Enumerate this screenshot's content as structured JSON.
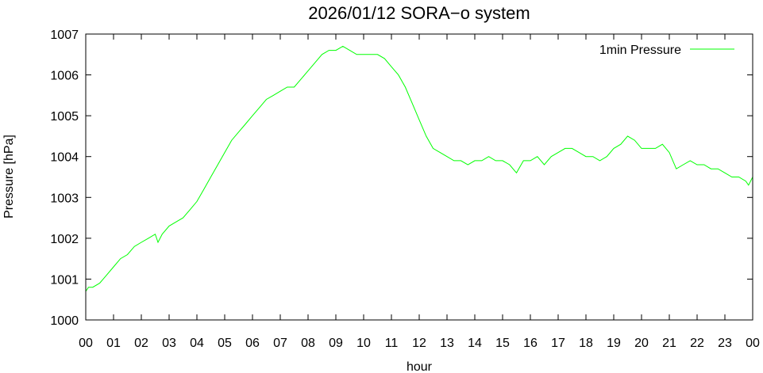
{
  "chart_data": {
    "type": "line",
    "title": "2026/01/12 SORA−o system",
    "xlabel": "hour",
    "ylabel": "Pressure [hPa]",
    "xlim": [
      0,
      24
    ],
    "ylim": [
      1000,
      1007
    ],
    "x_ticks": [
      0,
      1,
      2,
      3,
      4,
      5,
      6,
      7,
      8,
      9,
      10,
      11,
      12,
      13,
      14,
      15,
      16,
      17,
      18,
      19,
      20,
      21,
      22,
      23,
      24
    ],
    "x_tick_labels": [
      "00",
      "01",
      "02",
      "03",
      "04",
      "05",
      "06",
      "07",
      "08",
      "09",
      "10",
      "11",
      "12",
      "13",
      "14",
      "15",
      "16",
      "17",
      "18",
      "19",
      "20",
      "21",
      "22",
      "23",
      "00"
    ],
    "y_ticks": [
      1000,
      1001,
      1002,
      1003,
      1004,
      1005,
      1006,
      1007
    ],
    "y_tick_labels": [
      "1000",
      "1001",
      "1002",
      "1003",
      "1004",
      "1005",
      "1006",
      "1007"
    ],
    "legend_position": "top-right",
    "grid": false,
    "series": [
      {
        "name": "1min Pressure",
        "color": "#00ff00",
        "x": [
          0.0,
          0.1,
          0.25,
          0.5,
          0.75,
          1.0,
          1.25,
          1.5,
          1.75,
          2.0,
          2.25,
          2.5,
          2.6,
          2.75,
          3.0,
          3.25,
          3.5,
          3.75,
          4.0,
          4.25,
          4.5,
          4.75,
          5.0,
          5.25,
          5.5,
          5.75,
          6.0,
          6.25,
          6.5,
          6.75,
          7.0,
          7.25,
          7.5,
          7.75,
          8.0,
          8.25,
          8.5,
          8.75,
          9.0,
          9.25,
          9.5,
          9.75,
          10.0,
          10.25,
          10.5,
          10.75,
          11.0,
          11.25,
          11.5,
          11.75,
          12.0,
          12.25,
          12.5,
          12.75,
          13.0,
          13.25,
          13.5,
          13.75,
          14.0,
          14.25,
          14.5,
          14.75,
          15.0,
          15.25,
          15.5,
          15.75,
          16.0,
          16.25,
          16.5,
          16.75,
          17.0,
          17.25,
          17.5,
          17.75,
          18.0,
          18.25,
          18.5,
          18.75,
          19.0,
          19.25,
          19.5,
          19.75,
          20.0,
          20.25,
          20.5,
          20.75,
          21.0,
          21.25,
          21.5,
          21.75,
          22.0,
          22.25,
          22.5,
          22.75,
          23.0,
          23.25,
          23.5,
          23.75,
          23.85,
          24.0
        ],
        "y": [
          1000.7,
          1000.8,
          1000.8,
          1000.9,
          1001.1,
          1001.3,
          1001.5,
          1001.6,
          1001.8,
          1001.9,
          1002.0,
          1002.1,
          1001.9,
          1002.1,
          1002.3,
          1002.4,
          1002.5,
          1002.7,
          1002.9,
          1003.2,
          1003.5,
          1003.8,
          1004.1,
          1004.4,
          1004.6,
          1004.8,
          1005.0,
          1005.2,
          1005.4,
          1005.5,
          1005.6,
          1005.7,
          1005.7,
          1005.9,
          1006.1,
          1006.3,
          1006.5,
          1006.6,
          1006.6,
          1006.7,
          1006.6,
          1006.5,
          1006.5,
          1006.5,
          1006.5,
          1006.4,
          1006.2,
          1006.0,
          1005.7,
          1005.3,
          1004.9,
          1004.5,
          1004.2,
          1004.1,
          1004.0,
          1003.9,
          1003.9,
          1003.8,
          1003.9,
          1003.9,
          1004.0,
          1003.9,
          1003.9,
          1003.8,
          1003.6,
          1003.9,
          1003.9,
          1004.0,
          1003.8,
          1004.0,
          1004.1,
          1004.2,
          1004.2,
          1004.1,
          1004.0,
          1004.0,
          1003.9,
          1004.0,
          1004.2,
          1004.3,
          1004.5,
          1004.4,
          1004.2,
          1004.2,
          1004.2,
          1004.3,
          1004.1,
          1003.7,
          1003.8,
          1003.9,
          1003.8,
          1003.8,
          1003.7,
          1003.7,
          1003.6,
          1003.5,
          1003.5,
          1003.4,
          1003.3,
          1003.5
        ]
      }
    ]
  }
}
